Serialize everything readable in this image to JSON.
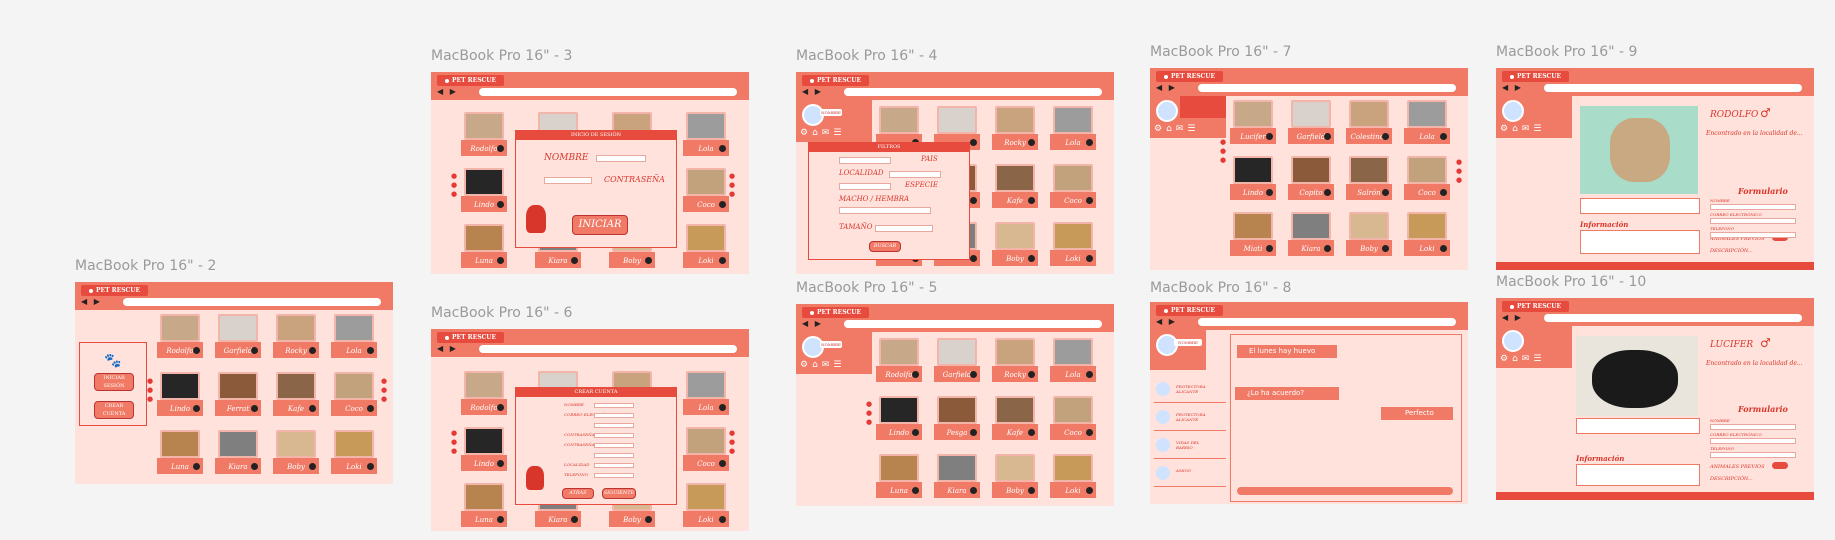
{
  "frames": {
    "f2": {
      "title": "MacBook Pro 16\" - 2",
      "brand": "PET RESCUE",
      "nav": "◀ ▶",
      "side_buttons": [
        "INICIAR SESIÓN",
        "CREAR CUENTA"
      ],
      "pets": [
        "Rodolfo",
        "Garfield",
        "Rocky",
        "Lola",
        "Lindo",
        "Ferrat",
        "Kafe",
        "Coco",
        "Luna",
        "Kiara",
        "Boby",
        "Loki"
      ]
    },
    "f3": {
      "title": "MacBook Pro 16\" - 3",
      "brand": "PET RESCUE",
      "modal_title": "INICIO DE SESIÓN",
      "nombre": "NOMBRE",
      "contrasena": "CONTRASEÑA",
      "iniciar": "INICIAR",
      "pets": [
        "Rodolfo",
        "",
        "",
        "Lola",
        "Lindo",
        "",
        "",
        "Coco",
        "Luna",
        "Kiara",
        "Boby",
        "Loki"
      ]
    },
    "f4": {
      "title": "MacBook Pro 16\" - 4",
      "brand": "PET RESCUE",
      "user_label": "NOMBRE",
      "modal_title": "FILTROS",
      "pais": "PAIS",
      "localidad": "LOCALIDAD",
      "especie": "ESPECIE",
      "macho_hembra": "MACHO / HEMBRA",
      "tamano": "TAMAÑO",
      "buscar": "BUSCAR",
      "pets": [
        "",
        "",
        "Rocky",
        "Lola",
        "",
        "",
        "Kafe",
        "Coco",
        "",
        "",
        "Boby",
        "Loki"
      ]
    },
    "f5": {
      "title": "MacBook Pro 16\" - 5",
      "brand": "PET RESCUE",
      "user_label": "NOMBRE",
      "pets": [
        "Rodolfo",
        "Garfield",
        "Rocky",
        "Lola",
        "Lindo",
        "Pesga",
        "Kafe",
        "Coco",
        "Luna",
        "Kiara",
        "Boby",
        "Loki"
      ]
    },
    "f6": {
      "title": "MacBook Pro 16\" - 6",
      "brand": "PET RESCUE",
      "modal_title": "CREAR CUENTA",
      "fields": [
        "NOMBRE",
        "CORREO ELECTRÓNICO",
        "",
        "CONTRASEÑA",
        "CONTRASEÑA",
        "",
        "LOCALIDAD",
        "TELEFONO"
      ],
      "buttons": [
        "ATRAS",
        "SIGUIENTE"
      ],
      "pets": [
        "Rodolfo",
        "",
        "",
        "Lola",
        "Lindo",
        "",
        "",
        "Coco",
        "Luna",
        "Kiara",
        "Boby",
        "Loki"
      ]
    },
    "f7": {
      "title": "MacBook Pro 16\" - 7",
      "brand": "PET RESCUE",
      "pets": [
        "Lucifer",
        "Garfield",
        "Colestinos",
        "Lola",
        "Lindo",
        "Copito",
        "Salrón",
        "Coco",
        "Miati",
        "Kiara",
        "Boby",
        "Loki"
      ]
    },
    "f8": {
      "title": "MacBook Pro 16\" - 8",
      "brand": "PET RESCUE",
      "user_label": "NOMBRE",
      "contacts": [
        "PROTECTORA ALICANTE",
        "PROTECTORA ALICANTE",
        "VIDAS DEL BARRIO",
        "AMIGO"
      ],
      "messages": [
        "El lunes hay huevo",
        "¿Lo ha acuerdo?",
        "Perfecto"
      ]
    },
    "f9": {
      "title": "MacBook Pro 16\" - 9",
      "brand": "PET RESCUE",
      "pet_name": "RODOLFO",
      "gender": "♂",
      "found": "Encontrado en la localidad de...",
      "form_title": "Formulario",
      "form_fields": [
        "NOMBRE",
        "CORREO ELECTRÓNICO",
        "TELEFONO"
      ],
      "info_title": "Información",
      "animales": "ANIMALES PREVIOS",
      "descripcion": "DESCRIPCIÓN..."
    },
    "f10": {
      "title": "MacBook Pro 16\" - 10",
      "brand": "PET RESCUE",
      "pet_name": "LUCIFER",
      "gender": "♂",
      "found": "Encontrado en la localidad de...",
      "form_title": "Formulario",
      "form_fields": [
        "NOMBRE",
        "CORREO ELECTRÓNICO",
        "TELEFONO"
      ],
      "info_title": "Información",
      "animales": "ANIMALES PREVIOS",
      "descripcion": "DESCRIPCIÓN..."
    }
  },
  "colors": {
    "accent": "#f07a66",
    "accent_dark": "#e64b3e",
    "background": "#ffe2dc",
    "canvas": "#f4f4f4"
  },
  "photo_colors": [
    "#c7a98a",
    "#d9d2cc",
    "#c9a27e",
    "#9c9c9c",
    "#262626",
    "#8a5a3a",
    "#8a6548",
    "#c2a27c",
    "#b7834e",
    "#7f7f7f",
    "#d8b890",
    "#c89a5a"
  ]
}
